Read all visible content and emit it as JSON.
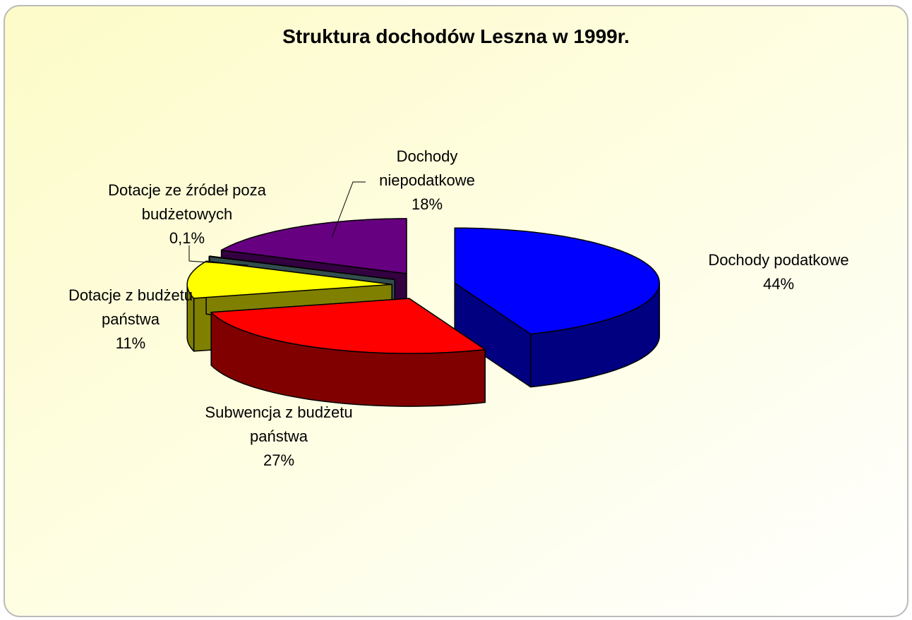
{
  "chart_data": {
    "type": "pie3d",
    "title": "Struktura dochodów Leszna w 1999r.",
    "categories": [
      "Dochody podatkowe",
      "Subwencja z budżetu państwa",
      "Dotacje z budżetu państwa",
      "Dotacje ze źródeł poza budżetowych",
      "Dochody niepodatkowe"
    ],
    "values": [
      44,
      27,
      11,
      0.1,
      18
    ],
    "value_labels": [
      "44%",
      "27%",
      "11%",
      "0,1%",
      "18%"
    ],
    "colors": [
      "#0000ff",
      "#ff0000",
      "#ffff00",
      "#669999",
      "#660080"
    ]
  }
}
